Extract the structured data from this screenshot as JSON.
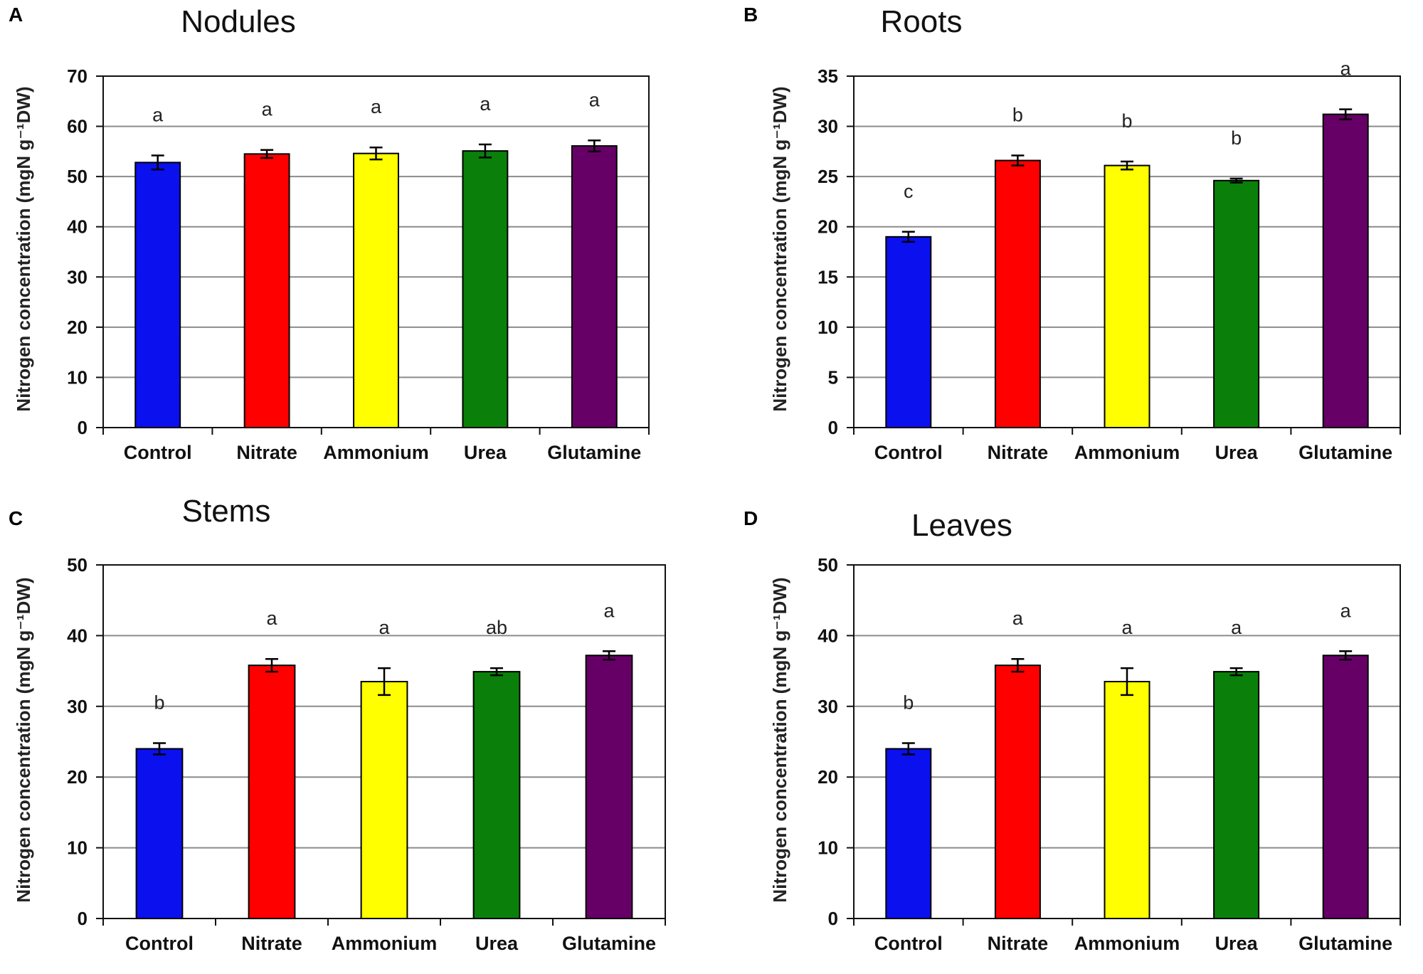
{
  "figure": {
    "y_axis_label": "Nitrogen  concentration (mgN g⁻¹DW)"
  },
  "chart_data": [
    {
      "panel": "A",
      "type": "bar",
      "title": "Nodules",
      "xlabel": "",
      "ylabel": "Nitrogen  concentration (mgN g⁻¹DW)",
      "ylim": [
        0,
        70
      ],
      "yticks": [
        0,
        10,
        20,
        30,
        40,
        50,
        60,
        70
      ],
      "grid": true,
      "categories": [
        "Control",
        "Nitrate",
        "Ammonium",
        "Urea",
        "Glutamine"
      ],
      "values": [
        52.8,
        54.5,
        54.6,
        55.1,
        56.1
      ],
      "errors": [
        1.4,
        0.8,
        1.2,
        1.3,
        1.1
      ],
      "significance": [
        "a",
        "a",
        "a",
        "a",
        "a"
      ],
      "colors": [
        "#0a10ee",
        "#ff0000",
        "#ffff00",
        "#0a800a",
        "#660066"
      ]
    },
    {
      "panel": "B",
      "type": "bar",
      "title": "Roots",
      "xlabel": "",
      "ylabel": "Nitrogen  concentration (mgN g⁻¹DW)",
      "ylim": [
        0,
        35
      ],
      "yticks": [
        0,
        5,
        10,
        15,
        20,
        25,
        30,
        35
      ],
      "grid": true,
      "categories": [
        "Control",
        "Nitrate",
        "Ammonium",
        "Urea",
        "Glutamine"
      ],
      "values": [
        19.0,
        26.6,
        26.1,
        24.6,
        31.2
      ],
      "errors": [
        0.5,
        0.5,
        0.4,
        0.2,
        0.5
      ],
      "significance": [
        "c",
        "b",
        "b",
        "b",
        "a"
      ],
      "colors": [
        "#0a10ee",
        "#ff0000",
        "#ffff00",
        "#0a800a",
        "#660066"
      ]
    },
    {
      "panel": "C",
      "type": "bar",
      "title": "Stems",
      "xlabel": "",
      "ylabel": "Nitrogen  concentration (mgN g⁻¹DW)",
      "ylim": [
        0,
        50
      ],
      "yticks": [
        0,
        10,
        20,
        30,
        40,
        50
      ],
      "grid": true,
      "categories": [
        "Control",
        "Nitrate",
        "Ammonium",
        "Urea",
        "Glutamine"
      ],
      "values": [
        24.0,
        35.8,
        33.5,
        34.9,
        37.2
      ],
      "errors": [
        0.8,
        0.9,
        1.9,
        0.5,
        0.6
      ],
      "significance": [
        "b",
        "a",
        "a",
        "ab",
        "a"
      ],
      "colors": [
        "#0a10ee",
        "#ff0000",
        "#ffff00",
        "#0a800a",
        "#660066"
      ]
    },
    {
      "panel": "D",
      "type": "bar",
      "title": "Leaves",
      "xlabel": "",
      "ylabel": "Nitrogen  concentration (mgN g⁻¹DW)",
      "ylim": [
        0,
        50
      ],
      "yticks": [
        0,
        10,
        20,
        30,
        40,
        50
      ],
      "grid": true,
      "categories": [
        "Control",
        "Nitrate",
        "Ammonium",
        "Urea",
        "Glutamine"
      ],
      "values": [
        24.0,
        35.8,
        33.5,
        34.9,
        37.2
      ],
      "errors": [
        0.8,
        0.9,
        1.9,
        0.5,
        0.6
      ],
      "significance": [
        "b",
        "a",
        "a",
        "a",
        "a"
      ],
      "colors": [
        "#0a10ee",
        "#ff0000",
        "#ffff00",
        "#0a800a",
        "#660066"
      ]
    }
  ]
}
